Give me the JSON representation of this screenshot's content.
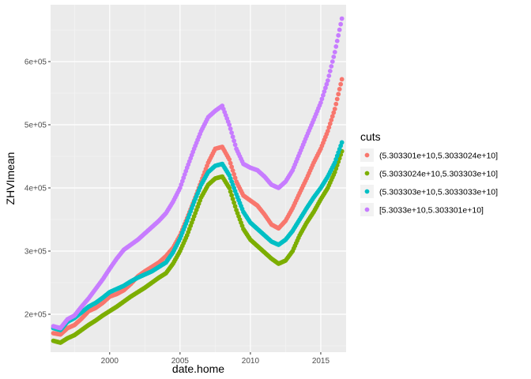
{
  "chart_data": {
    "type": "scatter",
    "xlabel": "date.home",
    "ylabel": "ZHVImean",
    "xlim": [
      1995.8,
      2016.8
    ],
    "ylim": [
      140000,
      690000
    ],
    "x_ticks": [
      2000,
      2005,
      2010,
      2015
    ],
    "x_tick_labels": [
      "2000",
      "2005",
      "2010",
      "2015"
    ],
    "y_ticks": [
      200000,
      300000,
      400000,
      500000,
      600000
    ],
    "y_tick_labels": [
      "2e+05",
      "3e+05",
      "4e+05",
      "5e+05",
      "6e+05"
    ],
    "grid": true,
    "legend": {
      "title": "cuts",
      "position": "right"
    },
    "series": [
      {
        "name": "(5.303301e+10,5.3033024e+10]",
        "color": "#F8766D",
        "points": [
          [
            1996.0,
            170000
          ],
          [
            1996.5,
            168000
          ],
          [
            1997.0,
            178000
          ],
          [
            1997.5,
            183000
          ],
          [
            1998.0,
            193000
          ],
          [
            1998.5,
            205000
          ],
          [
            1999.0,
            210000
          ],
          [
            1999.5,
            218000
          ],
          [
            2000.0,
            228000
          ],
          [
            2000.5,
            232000
          ],
          [
            2001.0,
            238000
          ],
          [
            2001.5,
            248000
          ],
          [
            2002.0,
            260000
          ],
          [
            2002.5,
            268000
          ],
          [
            2003.0,
            275000
          ],
          [
            2003.5,
            282000
          ],
          [
            2004.0,
            292000
          ],
          [
            2004.5,
            305000
          ],
          [
            2005.0,
            325000
          ],
          [
            2005.5,
            352000
          ],
          [
            2006.0,
            380000
          ],
          [
            2006.5,
            410000
          ],
          [
            2007.0,
            440000
          ],
          [
            2007.5,
            462000
          ],
          [
            2008.0,
            465000
          ],
          [
            2008.5,
            445000
          ],
          [
            2009.0,
            410000
          ],
          [
            2009.5,
            388000
          ],
          [
            2010.0,
            380000
          ],
          [
            2010.5,
            372000
          ],
          [
            2011.0,
            358000
          ],
          [
            2011.5,
            342000
          ],
          [
            2012.0,
            336000
          ],
          [
            2012.5,
            348000
          ],
          [
            2013.0,
            368000
          ],
          [
            2013.5,
            392000
          ],
          [
            2014.0,
            415000
          ],
          [
            2014.5,
            440000
          ],
          [
            2015.0,
            462000
          ],
          [
            2015.5,
            490000
          ],
          [
            2016.0,
            525000
          ],
          [
            2016.5,
            572000
          ]
        ]
      },
      {
        "name": "(5.3033024e+10,5.303303e+10]",
        "color": "#7CAE00",
        "points": [
          [
            1996.0,
            158000
          ],
          [
            1996.5,
            155000
          ],
          [
            1997.0,
            162000
          ],
          [
            1997.5,
            167000
          ],
          [
            1998.0,
            175000
          ],
          [
            1998.5,
            183000
          ],
          [
            1999.0,
            190000
          ],
          [
            1999.5,
            198000
          ],
          [
            2000.0,
            205000
          ],
          [
            2000.5,
            212000
          ],
          [
            2001.0,
            220000
          ],
          [
            2001.5,
            228000
          ],
          [
            2002.0,
            235000
          ],
          [
            2002.5,
            242000
          ],
          [
            2003.0,
            250000
          ],
          [
            2003.5,
            258000
          ],
          [
            2004.0,
            265000
          ],
          [
            2004.5,
            280000
          ],
          [
            2005.0,
            300000
          ],
          [
            2005.5,
            325000
          ],
          [
            2006.0,
            355000
          ],
          [
            2006.5,
            385000
          ],
          [
            2007.0,
            405000
          ],
          [
            2007.5,
            415000
          ],
          [
            2008.0,
            418000
          ],
          [
            2008.5,
            400000
          ],
          [
            2009.0,
            365000
          ],
          [
            2009.5,
            335000
          ],
          [
            2010.0,
            318000
          ],
          [
            2010.5,
            308000
          ],
          [
            2011.0,
            298000
          ],
          [
            2011.5,
            288000
          ],
          [
            2012.0,
            280000
          ],
          [
            2012.5,
            285000
          ],
          [
            2013.0,
            300000
          ],
          [
            2013.5,
            325000
          ],
          [
            2014.0,
            345000
          ],
          [
            2014.5,
            362000
          ],
          [
            2015.0,
            382000
          ],
          [
            2015.5,
            400000
          ],
          [
            2016.0,
            425000
          ],
          [
            2016.5,
            458000
          ]
        ]
      },
      {
        "name": "(5.303303e+10,5.3033033e+10]",
        "color": "#00BFC4",
        "points": [
          [
            1996.0,
            178000
          ],
          [
            1996.5,
            175000
          ],
          [
            1997.0,
            188000
          ],
          [
            1997.5,
            194000
          ],
          [
            1998.0,
            203000
          ],
          [
            1998.5,
            212000
          ],
          [
            1999.0,
            218000
          ],
          [
            1999.5,
            226000
          ],
          [
            2000.0,
            235000
          ],
          [
            2000.5,
            240000
          ],
          [
            2001.0,
            245000
          ],
          [
            2001.5,
            252000
          ],
          [
            2002.0,
            258000
          ],
          [
            2002.5,
            263000
          ],
          [
            2003.0,
            268000
          ],
          [
            2003.5,
            275000
          ],
          [
            2004.0,
            282000
          ],
          [
            2004.5,
            298000
          ],
          [
            2005.0,
            320000
          ],
          [
            2005.5,
            348000
          ],
          [
            2006.0,
            378000
          ],
          [
            2006.5,
            405000
          ],
          [
            2007.0,
            425000
          ],
          [
            2007.5,
            435000
          ],
          [
            2008.0,
            438000
          ],
          [
            2008.5,
            420000
          ],
          [
            2009.0,
            390000
          ],
          [
            2009.5,
            362000
          ],
          [
            2010.0,
            345000
          ],
          [
            2010.5,
            335000
          ],
          [
            2011.0,
            325000
          ],
          [
            2011.5,
            315000
          ],
          [
            2012.0,
            310000
          ],
          [
            2012.5,
            318000
          ],
          [
            2013.0,
            332000
          ],
          [
            2013.5,
            350000
          ],
          [
            2014.0,
            368000
          ],
          [
            2014.5,
            385000
          ],
          [
            2015.0,
            400000
          ],
          [
            2015.5,
            418000
          ],
          [
            2016.0,
            440000
          ],
          [
            2016.5,
            472000
          ]
        ]
      },
      {
        "name": "[5.3033e+10,5.303301e+10]",
        "color": "#C77CFF",
        "points": [
          [
            1996.0,
            181000
          ],
          [
            1996.5,
            178000
          ],
          [
            1997.0,
            192000
          ],
          [
            1997.5,
            198000
          ],
          [
            1998.0,
            212000
          ],
          [
            1998.5,
            225000
          ],
          [
            1999.0,
            240000
          ],
          [
            1999.5,
            255000
          ],
          [
            2000.0,
            272000
          ],
          [
            2000.5,
            288000
          ],
          [
            2001.0,
            302000
          ],
          [
            2001.5,
            310000
          ],
          [
            2002.0,
            318000
          ],
          [
            2002.5,
            328000
          ],
          [
            2003.0,
            338000
          ],
          [
            2003.5,
            348000
          ],
          [
            2004.0,
            360000
          ],
          [
            2004.5,
            378000
          ],
          [
            2005.0,
            400000
          ],
          [
            2005.5,
            432000
          ],
          [
            2006.0,
            462000
          ],
          [
            2006.5,
            490000
          ],
          [
            2007.0,
            512000
          ],
          [
            2007.5,
            522000
          ],
          [
            2008.0,
            530000
          ],
          [
            2008.5,
            500000
          ],
          [
            2009.0,
            462000
          ],
          [
            2009.5,
            438000
          ],
          [
            2010.0,
            432000
          ],
          [
            2010.5,
            428000
          ],
          [
            2011.0,
            418000
          ],
          [
            2011.5,
            405000
          ],
          [
            2012.0,
            400000
          ],
          [
            2012.5,
            410000
          ],
          [
            2013.0,
            428000
          ],
          [
            2013.5,
            455000
          ],
          [
            2014.0,
            482000
          ],
          [
            2014.5,
            508000
          ],
          [
            2015.0,
            535000
          ],
          [
            2015.5,
            570000
          ],
          [
            2016.0,
            615000
          ],
          [
            2016.5,
            668000
          ]
        ]
      }
    ]
  }
}
